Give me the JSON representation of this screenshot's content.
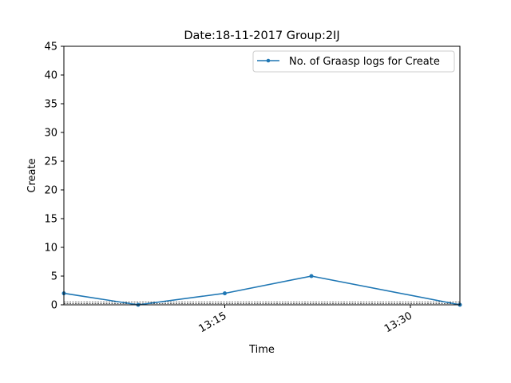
{
  "chart_data": {
    "type": "line",
    "title": "Date:18-11-2017  Group:2IJ",
    "xlabel": "Time",
    "ylabel": "Create",
    "x": [
      "13:02",
      "13:08",
      "13:15",
      "13:22",
      "13:34"
    ],
    "x_ticks": [
      "13:15",
      "13:30"
    ],
    "y_ticks": [
      0,
      5,
      10,
      15,
      20,
      25,
      30,
      35,
      40,
      45
    ],
    "ylim": [
      0,
      45
    ],
    "xlim": [
      "13:02",
      "13:34"
    ],
    "series": [
      {
        "name": "No. of Graasp logs for Create",
        "values": [
          2,
          0,
          2,
          5,
          0
        ],
        "color": "#1f77b4",
        "marker": "circle"
      }
    ],
    "reference_lines": [
      0.2,
      0.5
    ],
    "grid": false,
    "legend": "top-right"
  }
}
